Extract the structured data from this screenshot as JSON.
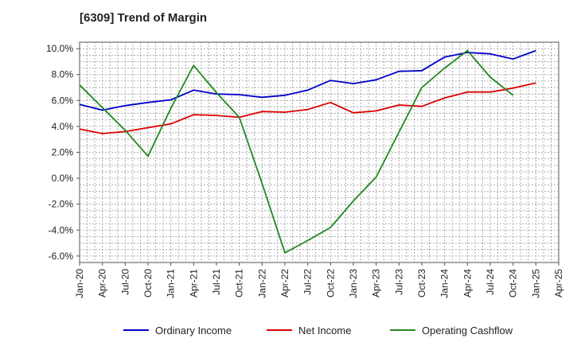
{
  "chart_data": {
    "type": "line",
    "title": "[6309]  Trend of Margin",
    "x": [
      "Jan-20",
      "Apr-20",
      "Jul-20",
      "Oct-20",
      "Jan-21",
      "Apr-21",
      "Jul-21",
      "Oct-21",
      "Jan-22",
      "Apr-22",
      "Jul-22",
      "Oct-22",
      "Jan-23",
      "Apr-23",
      "Jul-23",
      "Oct-23",
      "Jan-24",
      "Apr-24",
      "Jul-24",
      "Oct-24",
      "Jan-25",
      "Apr-25"
    ],
    "ylim": [
      -6.5,
      10.5
    ],
    "yticks": [
      -6.0,
      -4.0,
      -2.0,
      0.0,
      2.0,
      4.0,
      6.0,
      8.0,
      10.0
    ],
    "ytick_labels": [
      "-6.0%",
      "-4.0%",
      "-2.0%",
      "0.0%",
      "2.0%",
      "4.0%",
      "6.0%",
      "8.0%",
      "10.0%"
    ],
    "grid": true,
    "legend_position": "bottom",
    "series": [
      {
        "name": "Ordinary Income",
        "color": "#0000cc",
        "values": [
          5.7,
          5.25,
          5.6,
          5.85,
          6.05,
          6.8,
          6.5,
          6.45,
          6.25,
          6.4,
          6.8,
          7.55,
          7.3,
          7.6,
          8.25,
          8.3,
          9.35,
          9.7,
          9.6,
          9.2,
          9.85,
          null
        ]
      },
      {
        "name": "Net Income",
        "color": "#dd0000",
        "values": [
          3.8,
          3.45,
          3.6,
          3.9,
          4.2,
          4.9,
          4.85,
          4.7,
          5.15,
          5.1,
          5.3,
          5.85,
          5.05,
          5.2,
          5.65,
          5.55,
          6.2,
          6.65,
          6.65,
          6.95,
          7.35,
          null
        ]
      },
      {
        "name": "Operating Cashflow",
        "color": "#228822",
        "values": [
          7.2,
          5.45,
          3.7,
          1.7,
          5.4,
          8.7,
          6.6,
          4.7,
          -0.4,
          -5.75,
          -4.8,
          -3.8,
          -1.75,
          0.1,
          3.55,
          7.0,
          8.5,
          9.85,
          7.8,
          6.4,
          null,
          null
        ]
      }
    ]
  }
}
